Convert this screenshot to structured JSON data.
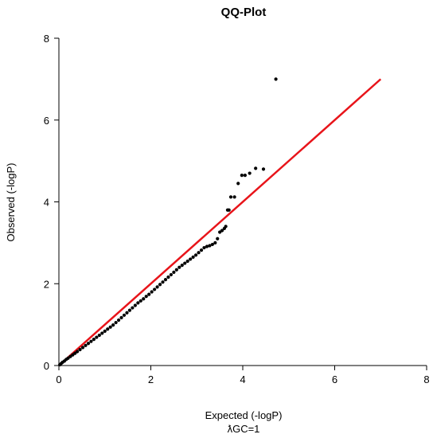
{
  "chart_data": {
    "type": "scatter",
    "title": "QQ-Plot",
    "xlabel": "Expected (-logP)",
    "ylabel": "Observed (-logP)",
    "annotation": "ƛGC=1",
    "xlim": [
      0,
      8
    ],
    "ylim": [
      0,
      8
    ],
    "xticks": [
      "0",
      "2",
      "4",
      "6",
      "8"
    ],
    "yticks": [
      "0",
      "2",
      "4",
      "6",
      "8"
    ],
    "reference_line": {
      "x": [
        0,
        7
      ],
      "y": [
        0,
        7
      ],
      "color": "#e8141a"
    },
    "point_color": "#000000",
    "series": [
      {
        "x": [
          0.02,
          0.05,
          0.08,
          0.12,
          0.16,
          0.2,
          0.25,
          0.3,
          0.35,
          0.4,
          0.46,
          0.52,
          0.58,
          0.64,
          0.7,
          0.76,
          0.82,
          0.88,
          0.94,
          1.0,
          1.06,
          1.12,
          1.18,
          1.24,
          1.3,
          1.36,
          1.42,
          1.48,
          1.54,
          1.6,
          1.66,
          1.72,
          1.78,
          1.84,
          1.9,
          1.96,
          2.02,
          2.08,
          2.14,
          2.2,
          2.26,
          2.32,
          2.38,
          2.44,
          2.5,
          2.56,
          2.62,
          2.68,
          2.74,
          2.8,
          2.86,
          2.92,
          2.98,
          3.04,
          3.1,
          3.16,
          3.22,
          3.28,
          3.34,
          3.4,
          3.45,
          3.5,
          3.55,
          3.6,
          3.63,
          3.67,
          3.7,
          3.74,
          3.82,
          3.9,
          3.98,
          4.05,
          4.15,
          4.28,
          4.45,
          4.72
        ],
        "y": [
          0.02,
          0.05,
          0.08,
          0.11,
          0.15,
          0.18,
          0.22,
          0.26,
          0.3,
          0.34,
          0.39,
          0.44,
          0.49,
          0.54,
          0.59,
          0.64,
          0.69,
          0.74,
          0.79,
          0.84,
          0.89,
          0.94,
          0.99,
          1.05,
          1.11,
          1.17,
          1.23,
          1.29,
          1.35,
          1.41,
          1.47,
          1.53,
          1.58,
          1.63,
          1.69,
          1.74,
          1.8,
          1.86,
          1.92,
          1.98,
          2.04,
          2.1,
          2.16,
          2.22,
          2.28,
          2.34,
          2.4,
          2.45,
          2.5,
          2.55,
          2.6,
          2.65,
          2.7,
          2.76,
          2.82,
          2.88,
          2.91,
          2.93,
          2.96,
          3.0,
          3.1,
          3.26,
          3.3,
          3.35,
          3.4,
          3.8,
          3.8,
          4.12,
          4.12,
          4.45,
          4.65,
          4.65,
          4.7,
          4.82,
          4.8,
          7.0
        ]
      }
    ]
  }
}
